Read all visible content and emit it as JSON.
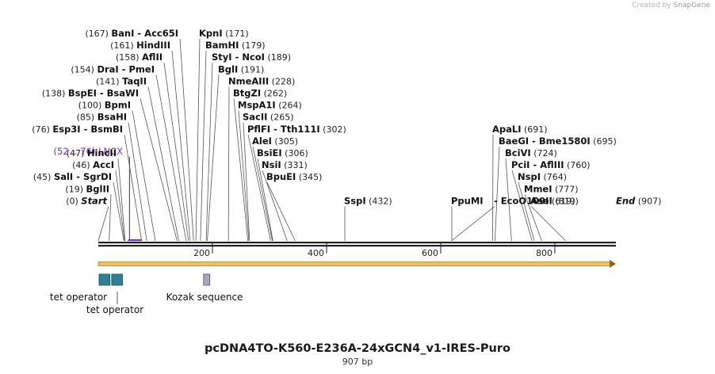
{
  "branding": {
    "created_by": "Created by",
    "app": "SnapGene"
  },
  "title": "pcDNA4TO-K560-E236A-24xGCN4_v1-IRES-Puro",
  "length": "907 bp",
  "length_bp": 907,
  "colors": {
    "backbone": "#222222",
    "arrow": "#f0c060",
    "arrow_outline": "#8a6a00",
    "feature_color": "#7b2fbf",
    "operator_fill": "#2f7f99",
    "kozak_fill": "#a3a9bd"
  },
  "ticks": [
    {
      "bp": 200,
      "label": "200"
    },
    {
      "bp": 400,
      "label": "400"
    },
    {
      "bp": 600,
      "label": "600"
    },
    {
      "bp": 800,
      "label": "800"
    }
  ],
  "sites": [
    {
      "name": "BanI",
      "name2": "Acc65I",
      "pos": "(167)",
      "bp": 167,
      "row": 0,
      "side": "left"
    },
    {
      "name": "HindIII",
      "pos": "(161)",
      "bp": 161,
      "row": 1,
      "side": "left"
    },
    {
      "name": "AflII",
      "pos": "(158)",
      "bp": 158,
      "row": 2,
      "side": "left"
    },
    {
      "name": "DraI",
      "name2": "PmeI",
      "pos": "(154)",
      "bp": 154,
      "row": 3,
      "side": "left"
    },
    {
      "name": "TaqII",
      "pos": "(141)",
      "bp": 141,
      "row": 4,
      "side": "left"
    },
    {
      "name": "BspEI",
      "name2": "BsaWI",
      "pos": "(138)",
      "bp": 138,
      "row": 5,
      "side": "left"
    },
    {
      "name": "BpmI",
      "pos": "(100)",
      "bp": 100,
      "row": 6,
      "side": "left"
    },
    {
      "name": "BsaHI",
      "pos": "(85)",
      "bp": 85,
      "row": 7,
      "side": "left"
    },
    {
      "name": "Esp3I",
      "name2": "BsmBI",
      "pos": "(76)",
      "bp": 76,
      "row": 8,
      "side": "left"
    },
    {
      "name": "HincII",
      "pos": "(47)",
      "bp": 47,
      "row": 10,
      "side": "left"
    },
    {
      "name": "AccI",
      "pos": "(46)",
      "bp": 46,
      "row": 11,
      "side": "left"
    },
    {
      "name": "SalI",
      "name2": "SgrDI",
      "pos": "(45)",
      "bp": 45,
      "row": 12,
      "side": "left"
    },
    {
      "name": "BglII",
      "pos": "(19)",
      "bp": 19,
      "row": 13,
      "side": "left"
    },
    {
      "name": "Start",
      "pos": "(0)",
      "bp": 0,
      "row": 14,
      "side": "left",
      "italic": true
    },
    {
      "name": "KpnI",
      "pos": "(171)",
      "bp": 171,
      "row": 0,
      "side": "right"
    },
    {
      "name": "BamHI",
      "pos": "(179)",
      "bp": 179,
      "row": 1,
      "side": "right"
    },
    {
      "name": "StyI",
      "name2": "NcoI",
      "pos": "(189)",
      "bp": 189,
      "row": 2,
      "side": "right"
    },
    {
      "name": "BglI",
      "pos": "(191)",
      "bp": 191,
      "row": 3,
      "side": "right"
    },
    {
      "name": "NmeAIII",
      "pos": "(228)",
      "bp": 228,
      "row": 4,
      "side": "right"
    },
    {
      "name": "BtgZI",
      "pos": "(262)",
      "bp": 262,
      "row": 5,
      "side": "right"
    },
    {
      "name": "MspA1I",
      "pos": "(264)",
      "bp": 264,
      "row": 6,
      "side": "right"
    },
    {
      "name": "SacII",
      "pos": "(265)",
      "bp": 265,
      "row": 7,
      "side": "right"
    },
    {
      "name": "PflFI",
      "name2": "Tth111I",
      "pos": "(302)",
      "bp": 302,
      "row": 8,
      "side": "right"
    },
    {
      "name": "AleI",
      "pos": "(305)",
      "bp": 305,
      "row": 9,
      "side": "right"
    },
    {
      "name": "BsiEI",
      "pos": "(306)",
      "bp": 306,
      "row": 10,
      "side": "right"
    },
    {
      "name": "NsiI",
      "pos": "(331)",
      "bp": 331,
      "row": 11,
      "side": "right"
    },
    {
      "name": "BpuEI",
      "pos": "(345)",
      "bp": 345,
      "row": 12,
      "side": "right"
    },
    {
      "name": "SspI",
      "pos": "(432)",
      "bp": 432,
      "row": 14,
      "side": "right"
    },
    {
      "name": "PpuMI",
      "pos": "",
      "bp": 619,
      "row": 14,
      "side": "right"
    },
    {
      "name": "EcoO109I",
      "pos": "(619)",
      "bp": 619,
      "row": 14,
      "side": "right",
      "dash": true
    },
    {
      "name": "ApaLI",
      "pos": "(691)",
      "bp": 691,
      "row": 8,
      "side": "right"
    },
    {
      "name": "BaeGI",
      "name2": "Bme1580I",
      "pos": "(695)",
      "bp": 695,
      "row": 9,
      "side": "right"
    },
    {
      "name": "BciVI",
      "pos": "(724)",
      "bp": 724,
      "row": 10,
      "side": "right"
    },
    {
      "name": "PciI",
      "name2": "AflIII",
      "pos": "(760)",
      "bp": 760,
      "row": 11,
      "side": "right"
    },
    {
      "name": "NspI",
      "pos": "(764)",
      "bp": 764,
      "row": 12,
      "side": "right"
    },
    {
      "name": "MmeI",
      "pos": "(777)",
      "bp": 777,
      "row": 13,
      "side": "right"
    },
    {
      "name": "AseI",
      "pos": "(819)",
      "bp": 819,
      "row": 14,
      "side": "right"
    },
    {
      "name": "End",
      "pos": "(907)",
      "bp": 907,
      "row": 14,
      "side": "right",
      "italic": true
    }
  ],
  "feature": {
    "name": "LNCX",
    "range": "(52 .. 76)",
    "start": 52,
    "end": 76
  },
  "features": [
    {
      "name": "tet operator",
      "start": 0,
      "end": 19,
      "kind": "operator"
    },
    {
      "name": "tet operator",
      "start": 22,
      "end": 41,
      "kind": "operator"
    },
    {
      "name": "Kozak sequence",
      "start": 183,
      "end": 193,
      "kind": "kozak"
    }
  ]
}
